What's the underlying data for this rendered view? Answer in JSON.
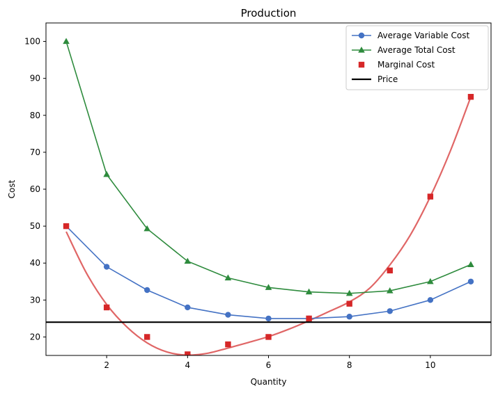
{
  "chart_data": {
    "type": "line",
    "title": "Production",
    "xlabel": "Quantity",
    "ylabel": "Cost",
    "xlim": [
      0.5,
      11.5
    ],
    "ylim": [
      15,
      105
    ],
    "xticks": [
      2,
      4,
      6,
      8,
      10
    ],
    "yticks": [
      20,
      30,
      40,
      50,
      60,
      70,
      80,
      90,
      100
    ],
    "grid": false,
    "legend_position": "top-right",
    "series": [
      {
        "name": "Average Variable Cost",
        "style": "line-marker",
        "marker": "circle",
        "color": "#4472c4",
        "x": [
          1,
          2,
          3,
          4,
          5,
          6,
          7,
          8,
          9,
          10,
          11
        ],
        "values": [
          50,
          39,
          32.7,
          28,
          26,
          25,
          25,
          25.5,
          27,
          30,
          35
        ]
      },
      {
        "name": "Average Total Cost",
        "style": "line-marker",
        "marker": "triangle",
        "color": "#2e8b3d",
        "x": [
          1,
          2,
          3,
          4,
          5,
          6,
          7,
          8,
          9,
          10,
          11
        ],
        "values": [
          100,
          64,
          49.3,
          40.5,
          36,
          33.4,
          32.2,
          31.8,
          32.5,
          35,
          39.6
        ]
      },
      {
        "name": "Marginal Cost",
        "style": "marker",
        "marker": "square",
        "color": "#d62728",
        "x": [
          1,
          2,
          3,
          4,
          5,
          6,
          7,
          8,
          9,
          10,
          11
        ],
        "values": [
          50,
          28,
          20,
          15.3,
          18,
          20,
          25,
          29,
          38,
          58,
          85
        ]
      },
      {
        "name": "Price",
        "style": "hline",
        "color": "#000000",
        "value": 24
      }
    ],
    "fitted_curve": {
      "color": "#e06666",
      "x": [
        1,
        1.5,
        2,
        2.5,
        3,
        3.5,
        4,
        4.5,
        5,
        5.5,
        6,
        6.5,
        7,
        7.5,
        8,
        8.5,
        9,
        9.5,
        10,
        10.5,
        11
      ],
      "values": [
        48.5,
        37.3,
        28.8,
        22.7,
        18.4,
        15.9,
        15.1,
        15.6,
        17.0,
        18.5,
        20.1,
        22.1,
        24.4,
        26.9,
        29.5,
        33.2,
        39.5,
        47.5,
        58,
        70.5,
        85
      ]
    }
  }
}
